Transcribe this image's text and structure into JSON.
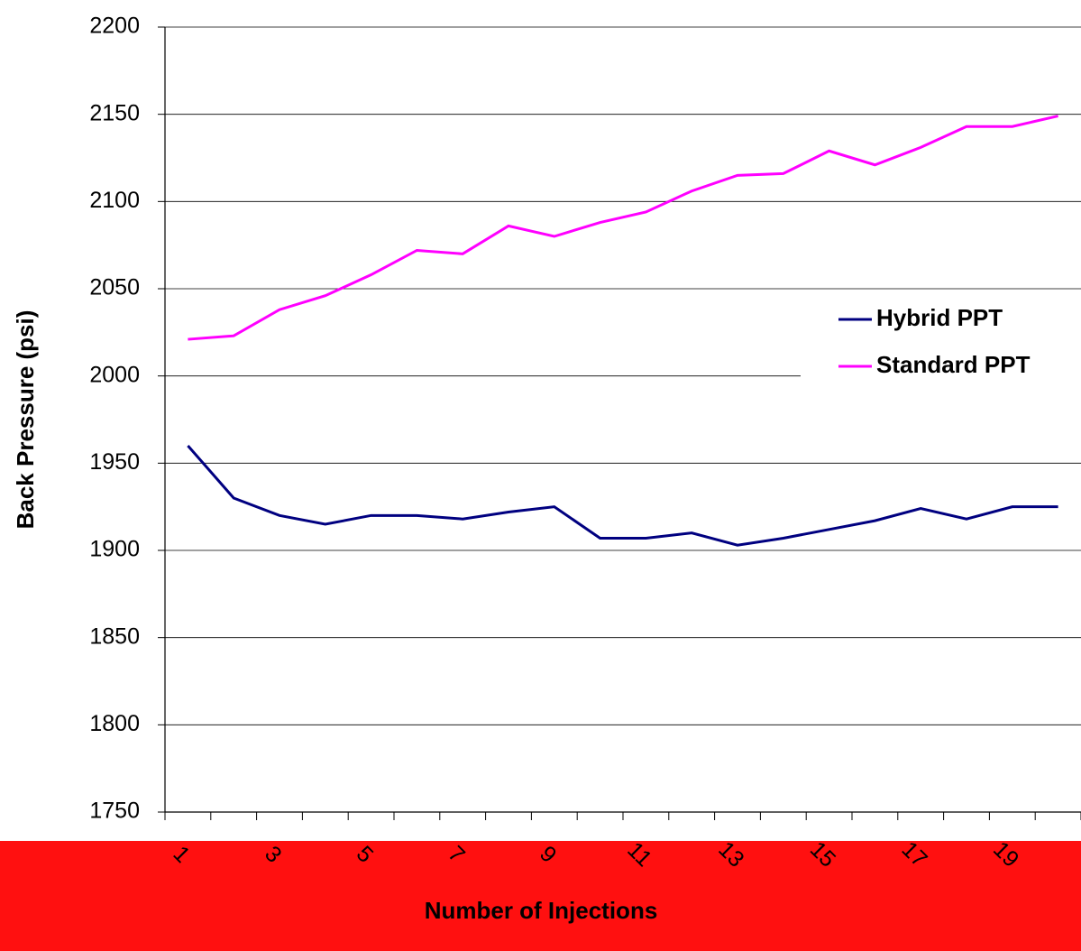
{
  "chart_data": {
    "type": "line",
    "x_label": "Number of Injections",
    "y_label": "Back Pressure (psi)",
    "categories": [
      "1",
      null,
      "3",
      null,
      "5",
      null,
      "7",
      null,
      "9",
      null,
      "11",
      null,
      "13",
      null,
      "15",
      null,
      "17",
      null,
      "19",
      null
    ],
    "series": [
      {
        "name": "Hybrid PPT",
        "color": "#000080",
        "values": [
          1960,
          1930,
          1920,
          1915,
          1920,
          1920,
          1918,
          1922,
          1925,
          1907,
          1907,
          1910,
          1903,
          1907,
          1912,
          1917,
          1924,
          1918,
          1925,
          1925
        ]
      },
      {
        "name": "Standard PPT",
        "color": "#ff00ff",
        "values": [
          2021,
          2023,
          2038,
          2046,
          2058,
          2072,
          2070,
          2086,
          2080,
          2088,
          2094,
          2106,
          2115,
          2116,
          2129,
          2121,
          2131,
          2143,
          2143,
          2149
        ]
      }
    ],
    "ylim": [
      1750,
      2200
    ],
    "yticks": [
      1750,
      1800,
      1850,
      1900,
      1950,
      2000,
      2050,
      2100,
      2150,
      2200
    ],
    "grid": true,
    "legend": "right"
  }
}
